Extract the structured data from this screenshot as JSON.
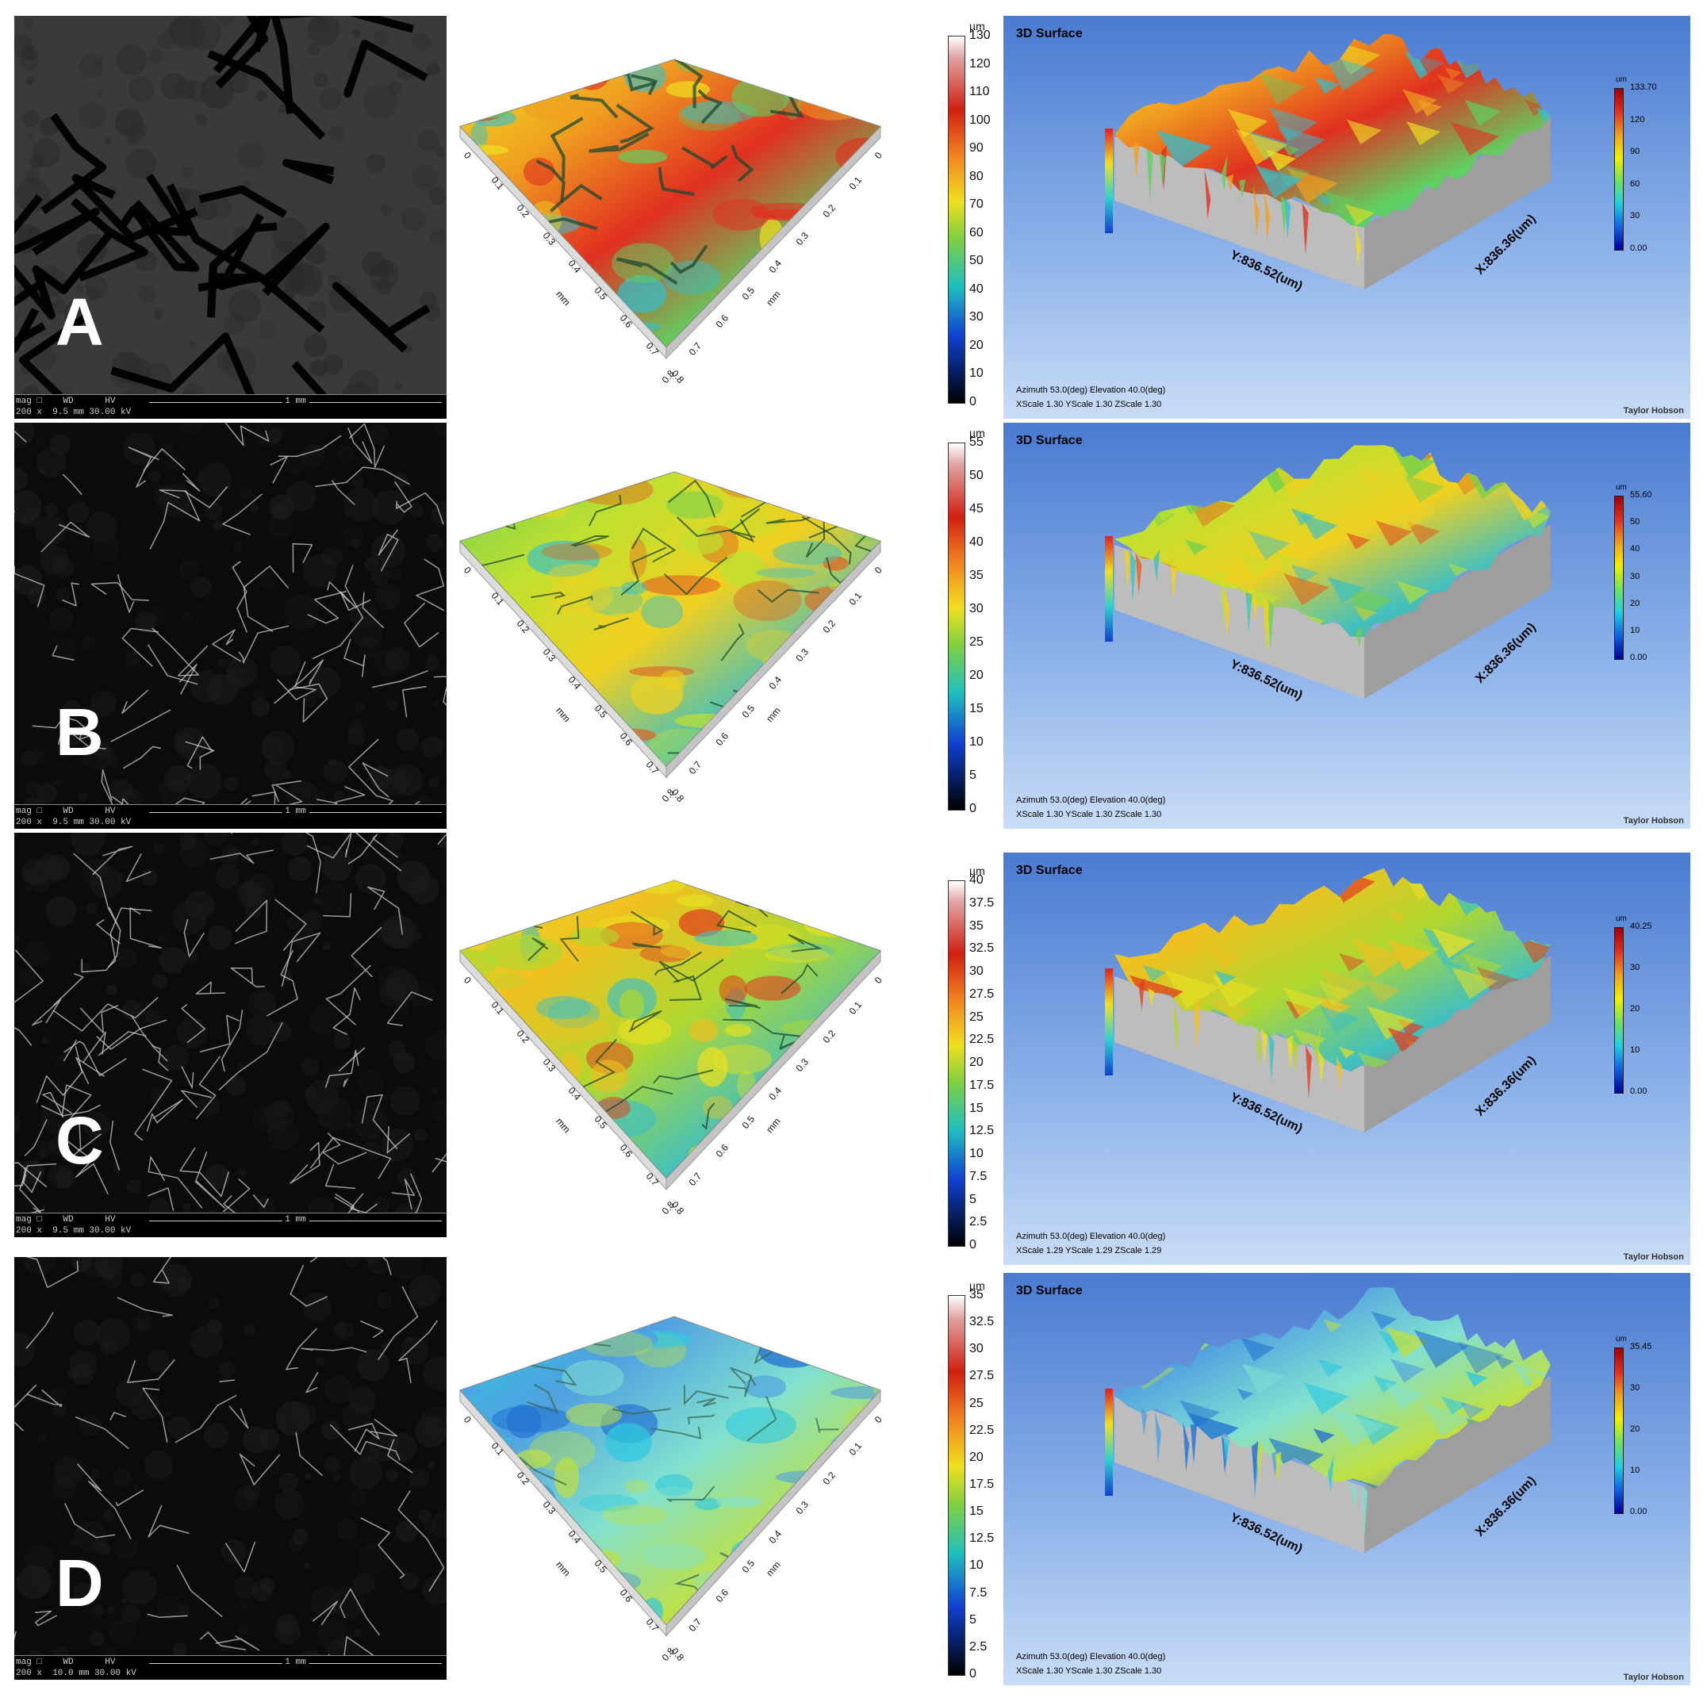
{
  "panels": [
    {
      "id": "A",
      "letter": "A",
      "sem": {
        "mag": "200 x",
        "wd": "9.5 mm",
        "hv": "30.00 kV",
        "scale": "1 mm"
      },
      "mid": {
        "ticks": [
          "0",
          "0.1",
          "0.2",
          "0.3",
          "0.4",
          "0.5",
          "0.6",
          "0.7",
          "0.8"
        ],
        "unit": "mm"
      },
      "colorbar": {
        "unit": "µm",
        "ticks": [
          "130",
          "120",
          "110",
          "100",
          "90",
          "80",
          "70",
          "60",
          "50",
          "40",
          "30",
          "20",
          "10",
          "0"
        ]
      },
      "surface": {
        "title": "3D Surface",
        "info1": "Azimuth  53.0(deg)  Elevation  40.0(deg)",
        "info2": "XScale  1.30   YScale  1.30   ZScale  1.30",
        "brand": "Taylor Hobson",
        "y_axis": "Y:836.52(um)",
        "x_axis": "X:836.36(um)",
        "legend_unit": "um",
        "legend_ticks": [
          "133.70",
          "120",
          "90",
          "60",
          "30",
          "0.00"
        ],
        "palette": [
          "#f0e020",
          "#f0a020",
          "#e03020",
          "#60d060",
          "#30c0d0"
        ]
      }
    },
    {
      "id": "B",
      "letter": "B",
      "sem": {
        "mag": "200 x",
        "wd": "9.5 mm",
        "hv": "30.00 kV",
        "scale": "1 mm"
      },
      "mid": {
        "ticks": [
          "0",
          "0.1",
          "0.2",
          "0.3",
          "0.4",
          "0.5",
          "0.6",
          "0.7",
          "0.8"
        ],
        "unit": "mm"
      },
      "colorbar": {
        "unit": "µm",
        "ticks": [
          "55",
          "50",
          "45",
          "40",
          "35",
          "30",
          "25",
          "20",
          "15",
          "10",
          "5",
          "0"
        ]
      },
      "surface": {
        "title": "3D Surface",
        "info1": "Azimuth  53.0(deg)  Elevation  40.0(deg)",
        "info2": "XScale  1.30   YScale  1.30   ZScale  1.30",
        "brand": "Taylor Hobson",
        "y_axis": "Y:836.52(um)",
        "x_axis": "X:836.36(um)",
        "legend_unit": "um",
        "legend_ticks": [
          "55.60",
          "50",
          "40",
          "30",
          "20",
          "10",
          "0.00"
        ],
        "palette": [
          "#70d050",
          "#c0e030",
          "#f0d020",
          "#40c0c0",
          "#e06020"
        ]
      }
    },
    {
      "id": "C",
      "letter": "C",
      "sem": {
        "mag": "200 x",
        "wd": "9.5 mm",
        "hv": "30.00 kV",
        "scale": "1 mm"
      },
      "mid": {
        "ticks": [
          "0",
          "0.1",
          "0.2",
          "0.3",
          "0.4",
          "0.5",
          "0.6",
          "0.7",
          "0.8"
        ],
        "unit": "mm"
      },
      "colorbar": {
        "unit": "µm",
        "ticks": [
          "40",
          "37.5",
          "35",
          "32.5",
          "30",
          "27.5",
          "25",
          "22.5",
          "20",
          "17.5",
          "15",
          "12.5",
          "10",
          "7.5",
          "5",
          "2.5",
          "0"
        ]
      },
      "surface": {
        "title": "3D Surface",
        "info1": "Azimuth  53.0(deg)  Elevation  40.0(deg)",
        "info2": "XScale  1.29   YScale  1.29   ZScale  1.29",
        "brand": "Taylor Hobson",
        "y_axis": "Y:836.52(um)",
        "x_axis": "X:836.36(um)",
        "legend_unit": "um",
        "legend_ticks": [
          "40.25",
          "30",
          "20",
          "10",
          "0.00"
        ],
        "palette": [
          "#e8e020",
          "#f0c020",
          "#b0d830",
          "#40c0c0",
          "#e04020"
        ]
      }
    },
    {
      "id": "D",
      "letter": "D",
      "sem": {
        "mag": "200 x",
        "wd": "10.0 mm",
        "hv": "30.00 kV",
        "scale": "1 mm"
      },
      "mid": {
        "ticks": [
          "0",
          "0.1",
          "0.2",
          "0.3",
          "0.4",
          "0.5",
          "0.6",
          "0.7",
          "0.8"
        ],
        "unit": "mm"
      },
      "colorbar": {
        "unit": "µm",
        "ticks": [
          "35",
          "32.5",
          "30",
          "27.5",
          "25",
          "22.5",
          "20",
          "17.5",
          "15",
          "12.5",
          "10",
          "7.5",
          "5",
          "2.5",
          "0"
        ]
      },
      "surface": {
        "title": "3D Surface",
        "info1": "Azimuth  53.0(deg)  Elevation  40.0(deg)",
        "info2": "XScale  1.30   YScale  1.30   ZScale  1.30",
        "brand": "Taylor Hobson",
        "y_axis": "Y:836.52(um)",
        "x_axis": "X:836.36(um)",
        "legend_unit": "um",
        "legend_ticks": [
          "35.45",
          "30",
          "20",
          "10",
          "0.00"
        ],
        "palette": [
          "#30c8e0",
          "#50a0e0",
          "#80e0d0",
          "#c0e040",
          "#2070d0"
        ]
      }
    }
  ]
}
